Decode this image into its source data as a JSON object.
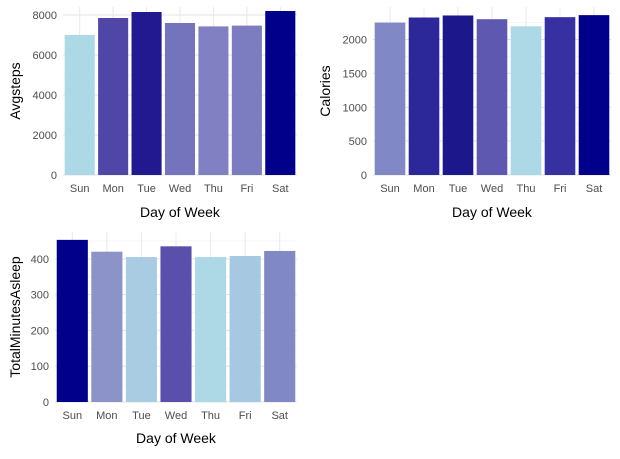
{
  "chart_data": [
    {
      "type": "bar",
      "categories": [
        "Sun",
        "Mon",
        "Tue",
        "Wed",
        "Thu",
        "Fri",
        "Sat"
      ],
      "values": [
        7000,
        7850,
        8150,
        7600,
        7430,
        7470,
        8200
      ],
      "colors": [
        "#add8e6",
        "#5046a8",
        "#22188f",
        "#7474bd",
        "#8080c2",
        "#7c7cc0",
        "#00008b"
      ],
      "xlabel": "Day of Week",
      "ylabel": "Avgsteps",
      "ylim": [
        0,
        8400
      ],
      "yticks": [
        0,
        2000,
        4000,
        6000,
        8000
      ],
      "ytick_labels": [
        "0",
        "2000",
        "4000",
        "6000",
        "8000"
      ],
      "grid": true
    },
    {
      "type": "bar",
      "categories": [
        "Sun",
        "Mon",
        "Tue",
        "Wed",
        "Thu",
        "Fri",
        "Sat"
      ],
      "values": [
        2250,
        2325,
        2355,
        2300,
        2195,
        2330,
        2360
      ],
      "colors": [
        "#8088c6",
        "#2c2899",
        "#1c188c",
        "#5e58b0",
        "#add8e6",
        "#3630a0",
        "#00008b"
      ],
      "xlabel": "Day of Week",
      "ylabel": "Calories",
      "ylim": [
        0,
        2480
      ],
      "yticks": [
        0,
        500,
        1000,
        1500,
        2000
      ],
      "ytick_labels": [
        "0",
        "500",
        "1000",
        "1500",
        "2000"
      ],
      "grid": true
    },
    {
      "type": "bar",
      "categories": [
        "Sun",
        "Mon",
        "Tue",
        "Wed",
        "Thu",
        "Fri",
        "Sat"
      ],
      "values": [
        453,
        420,
        405,
        435,
        405,
        408,
        422
      ],
      "colors": [
        "#00008b",
        "#8b93c9",
        "#a9cce2",
        "#5a4fab",
        "#add8e6",
        "#a7c8e1",
        "#8089c6"
      ],
      "xlabel": "Day of Week",
      "ylabel": "TotalMinutesAsleep",
      "ylim": [
        0,
        475
      ],
      "yticks": [
        0,
        100,
        200,
        300,
        400
      ],
      "ytick_labels": [
        "0",
        "100",
        "200",
        "300",
        "400"
      ],
      "grid": true
    }
  ]
}
